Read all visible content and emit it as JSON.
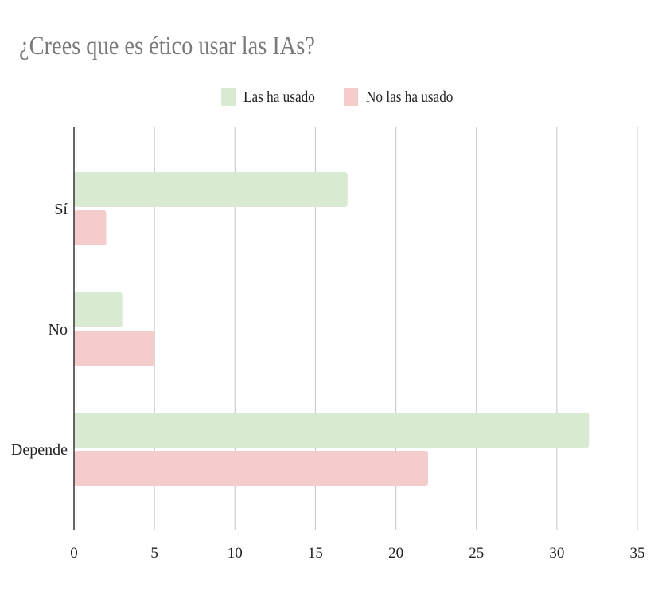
{
  "chart_data": {
    "type": "bar",
    "orientation": "horizontal",
    "title": "¿Crees que es ético usar las IAs?",
    "categories": [
      "Sí",
      "No",
      "Depende"
    ],
    "series": [
      {
        "name": "Las ha usado",
        "values": [
          17,
          3,
          32
        ],
        "color": "#d9ead3"
      },
      {
        "name": "No las ha usado",
        "values": [
          2,
          5,
          22
        ],
        "color": "#f4cccc"
      }
    ],
    "xlim": [
      0,
      35
    ],
    "xticks": [
      "0",
      "5",
      "10",
      "15",
      "20",
      "25",
      "30",
      "35"
    ],
    "grid": true,
    "legend_position": "top-center"
  }
}
